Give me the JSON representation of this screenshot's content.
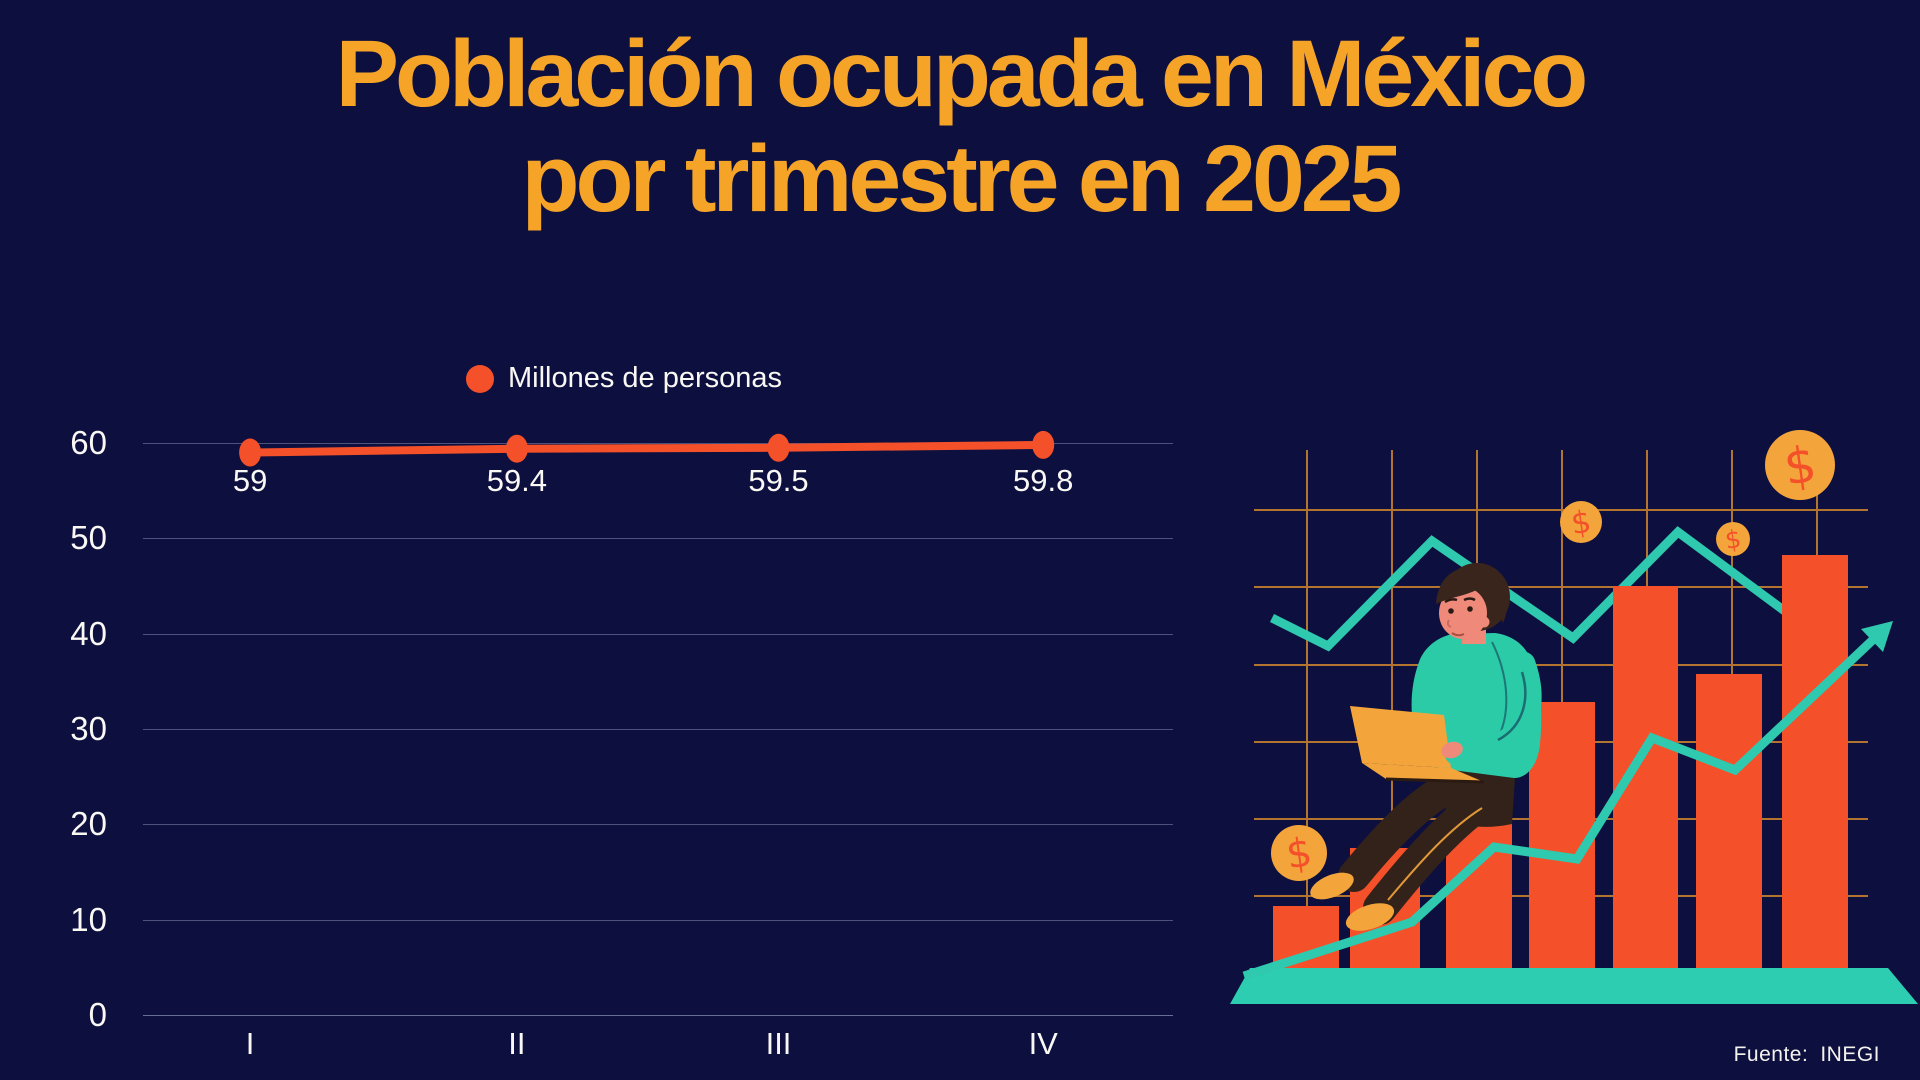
{
  "page": {
    "background": "#0D103E"
  },
  "title": {
    "line1": "Población ocupada en México",
    "line2": "por trimestre en 2025",
    "color": "#F5A428"
  },
  "legend": {
    "label": "Millones de personas",
    "marker_color": "#F4502A"
  },
  "source": {
    "label": "Fuente:",
    "value": "INEGI"
  },
  "illustration": {
    "coin_symbol": "$"
  },
  "chart_data": {
    "type": "line",
    "title": "Población ocupada en México por trimestre en 2025",
    "categories": [
      "I",
      "II",
      "III",
      "IV"
    ],
    "series": [
      {
        "name": "Millones de personas",
        "values": [
          59,
          59.4,
          59.5,
          59.8
        ],
        "color": "#F4502A"
      }
    ],
    "data_labels": [
      "59",
      "59.4",
      "59.5",
      "59.8"
    ],
    "y_ticks": [
      0,
      10,
      20,
      30,
      40,
      50,
      60
    ],
    "ylim": [
      0,
      60
    ],
    "xlabel": "",
    "ylabel": "",
    "grid": true,
    "legend_position": "top"
  }
}
